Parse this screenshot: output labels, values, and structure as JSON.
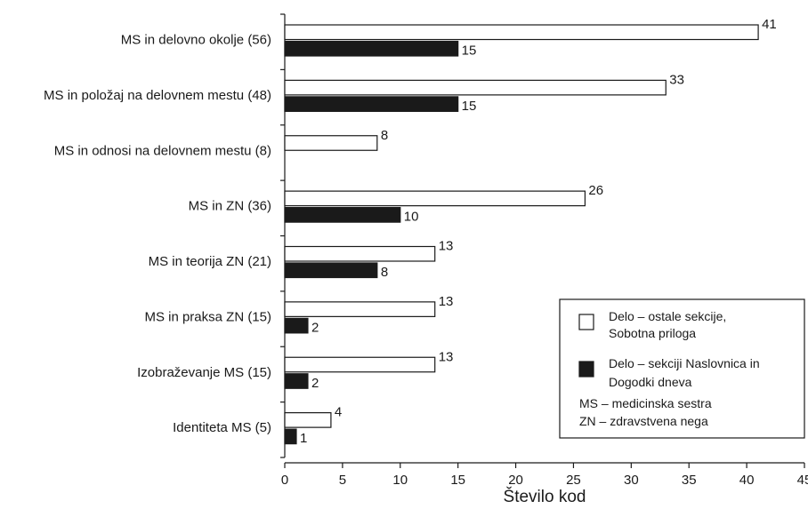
{
  "chart_data": {
    "type": "bar",
    "orientation": "horizontal",
    "categories": [
      "MS in delovno okolje (56)",
      "MS in položaj na delovnem mestu (48)",
      "MS in odnosi na delovnem mestu (8)",
      "MS in ZN (36)",
      "MS in teorija ZN (21)",
      "MS in praksa ZN (15)",
      "Izobraževanje MS (15)",
      "Identiteta MS (5)"
    ],
    "series": [
      {
        "name": "Delo – ostale sekcije, Sobotna priloga",
        "color": "#ffffff",
        "values": [
          41,
          33,
          8,
          26,
          13,
          13,
          13,
          4
        ]
      },
      {
        "name": "Delo – sekciji Naslovnica in Dogodki dneva",
        "color": "#1a1a1a",
        "values": [
          15,
          15,
          null,
          10,
          8,
          2,
          2,
          1
        ]
      }
    ],
    "xlabel": "Število kod",
    "ylabel": "",
    "title": "",
    "xlim": [
      0,
      45
    ],
    "xticks": [
      "0",
      "5",
      "10",
      "15",
      "20",
      "25",
      "30",
      "35",
      "40",
      "45"
    ],
    "grid": false,
    "legend": {
      "placement": "bottom-right",
      "entries": [
        "Delo – ostale sekcije,",
        "Sobotna priloga",
        "Delo – sekciji Naslovnica in",
        "Dogodki dneva"
      ],
      "notes": [
        "MS – medicinska sestra",
        "ZN – zdravstvena nega"
      ]
    }
  }
}
